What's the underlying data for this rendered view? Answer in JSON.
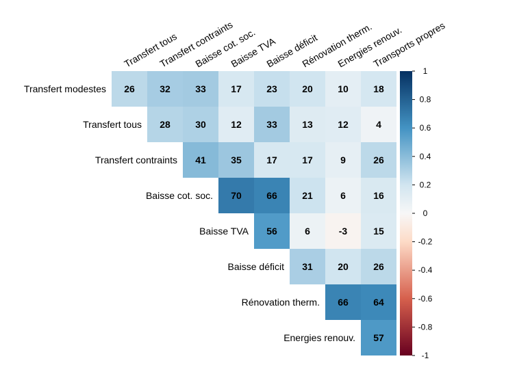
{
  "chart_data": {
    "type": "heatmap",
    "subtype": "correlation-matrix-upper",
    "value_scale_note": "cell value = correlation × 100",
    "row_labels": [
      "Transfert modestes",
      "Transfert tous",
      "Transfert contraints",
      "Baisse cot. soc.",
      "Baisse TVA",
      "Baisse déficit",
      "Rénovation therm.",
      "Energies renouv."
    ],
    "column_labels": [
      "Transfert tous",
      "Transfert contraints",
      "Baisse cot. soc.",
      "Baisse TVA",
      "Baisse déficit",
      "Rénovation therm.",
      "Energies renouv.",
      "Transports propres"
    ],
    "values": [
      [
        26,
        32,
        33,
        17,
        23,
        20,
        10,
        18
      ],
      [
        null,
        28,
        30,
        12,
        33,
        13,
        12,
        4
      ],
      [
        null,
        null,
        41,
        35,
        17,
        17,
        9,
        26
      ],
      [
        null,
        null,
        null,
        70,
        66,
        21,
        6,
        16
      ],
      [
        null,
        null,
        null,
        null,
        56,
        6,
        -3,
        15
      ],
      [
        null,
        null,
        null,
        null,
        null,
        31,
        20,
        26
      ],
      [
        null,
        null,
        null,
        null,
        null,
        null,
        66,
        64
      ],
      [
        null,
        null,
        null,
        null,
        null,
        null,
        null,
        57
      ]
    ],
    "colorbar": {
      "range": [
        -1,
        1
      ],
      "ticks": [
        "1",
        "0.8",
        "0.6",
        "0.4",
        "0.2",
        "0",
        "-0.2",
        "-0.4",
        "-0.6",
        "-0.8",
        "-1"
      ],
      "colors": {
        "neg_strong": "#67001F",
        "neg_mid": "#D6604D",
        "neg_light": "#FDDBC7",
        "neutral": "#F7F7F7",
        "pos_light": "#D1E5F0",
        "pos_mid": "#4393C3",
        "pos_strong": "#053061"
      }
    },
    "grid": false,
    "legend": "right"
  }
}
